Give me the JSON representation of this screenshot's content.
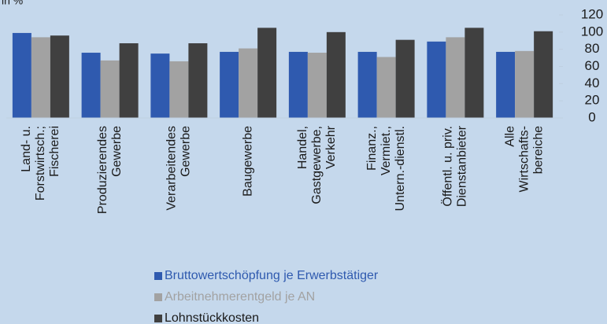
{
  "chart_data": {
    "type": "bar",
    "y_label": "in %",
    "categories": [
      [
        "Land- u.",
        "Forstwirtsch.;",
        "Fischerei"
      ],
      [
        "Produzierendes",
        "Gewerbe"
      ],
      [
        "Verarbeitendes",
        "Gewerbe"
      ],
      [
        "Baugewerbe"
      ],
      [
        "Handel,",
        "Gastgewerbe,",
        "Verkehr"
      ],
      [
        "Finanz.,",
        "Vermiet.,",
        "Untern.-dienstl."
      ],
      [
        "Öffentl. u. priv.",
        "Dienstanbieter"
      ],
      [
        "Alle",
        "Wirtschafts-",
        "bereiche"
      ]
    ],
    "series": [
      {
        "name": "Bruttowertschöpfung je Erwerbstätiger",
        "color": "#2f5aaf",
        "values": [
          99,
          76,
          75,
          77,
          77,
          77,
          89,
          77
        ]
      },
      {
        "name": "Arbeitnehmerentgeld je AN",
        "color": "#a2a2a2",
        "values": [
          94,
          67,
          66,
          81,
          76,
          71,
          94,
          78
        ]
      },
      {
        "name": "Lohnstückkosten",
        "color": "#404040",
        "values": [
          96,
          87,
          87,
          105,
          100,
          91,
          105,
          101
        ]
      }
    ],
    "ylim": [
      0,
      120
    ],
    "yticks": [
      0,
      20,
      40,
      60,
      80,
      100,
      120
    ],
    "grid": false,
    "legend": "bottom"
  }
}
